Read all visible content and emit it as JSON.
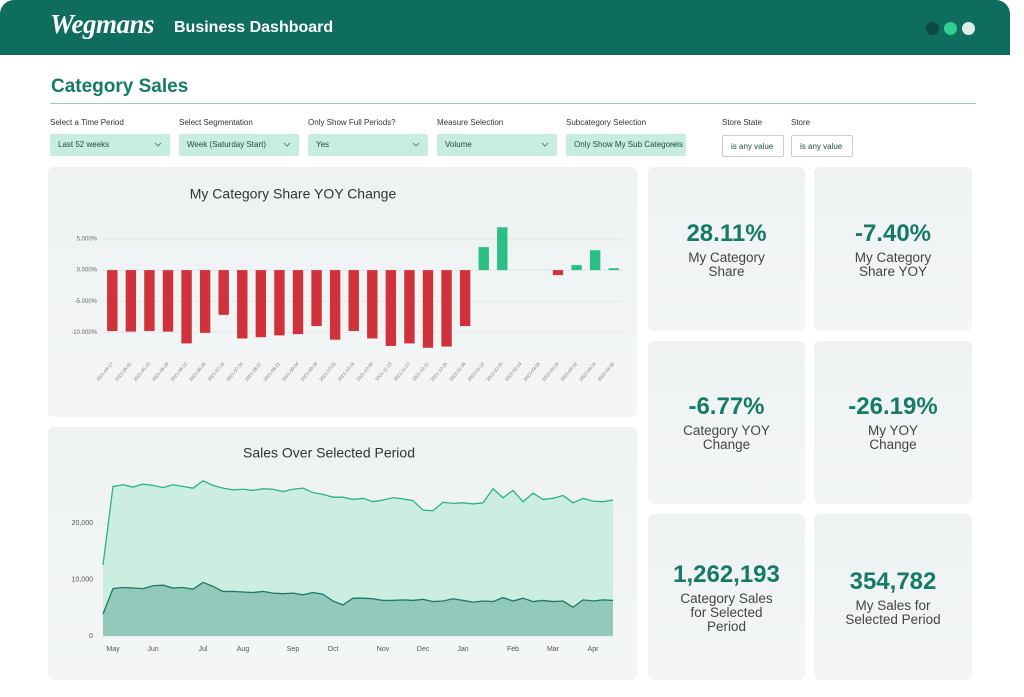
{
  "header": {
    "logo": "Wegmans",
    "title": "Business Dashboard"
  },
  "section_title": "Category Sales",
  "filters": [
    {
      "label": "Select a Time Period",
      "value": "Last 52 weeks"
    },
    {
      "label": "Select Segmentation",
      "value": "Week (Saturday Start)"
    },
    {
      "label": "Only Show Full Periods?",
      "value": "Yes"
    },
    {
      "label": "Measure Selection",
      "value": "Volume"
    },
    {
      "label": "Subcategory Selection",
      "value": "Only Show My Sub Categoreis"
    },
    {
      "label": "Store State",
      "value": "is any value"
    },
    {
      "label": "Store",
      "value": "is any value"
    }
  ],
  "chart_data": [
    {
      "type": "bar",
      "title": "My Category Share YOY Change",
      "categories": [
        "2021-04-17",
        "2021-05-01",
        "2021-05-15",
        "2021-05-29",
        "2021-06-12",
        "2021-06-26",
        "2021-07-10",
        "2021-07-24",
        "2021-08-07",
        "2021-08-21",
        "2021-09-04",
        "2021-09-18",
        "2021-10-02",
        "2021-10-16",
        "2021-10-30",
        "2021-11-13",
        "2021-11-27",
        "2021-12-11",
        "2021-12-25",
        "2022-01-08",
        "2022-01-22",
        "2022-02-05",
        "2022-02-19",
        "2022-03-05",
        "2022-03-19",
        "2022-04-02",
        "2022-04-16",
        "2022-04-30"
      ],
      "values": [
        -9.8,
        -9.9,
        -9.8,
        -9.9,
        -11.8,
        -10.1,
        -7.2,
        -11.0,
        -10.8,
        -10.5,
        -10.3,
        -9.0,
        -11.2,
        -9.8,
        -11.0,
        -12.2,
        -11.8,
        -12.5,
        -12.3,
        -9.0,
        3.7,
        6.9,
        0,
        0,
        -0.8,
        0.8,
        3.2,
        0.3
      ],
      "positive_color": "#2cbf85",
      "negative_color": "#d0323c",
      "ylim": [
        -13.5,
        7.5
      ],
      "yticks": [
        {
          "value": 5,
          "label": "5.000%"
        },
        {
          "value": 0,
          "label": "0.000%"
        },
        {
          "value": -5,
          "label": "-5.000%"
        },
        {
          "value": -10,
          "label": "-10.000%"
        }
      ],
      "grid": true
    },
    {
      "type": "area",
      "title": "Sales Over Selected Period",
      "categories": [
        null,
        "May",
        null,
        null,
        null,
        "Jun",
        null,
        null,
        null,
        null,
        "Jul",
        null,
        null,
        null,
        "Aug",
        null,
        null,
        null,
        null,
        "Sep",
        null,
        null,
        null,
        "Oct",
        null,
        null,
        null,
        null,
        "Nov",
        null,
        null,
        null,
        "Dec",
        null,
        null,
        null,
        "Jan",
        null,
        null,
        null,
        null,
        "Feb",
        null,
        null,
        null,
        "Mar",
        null,
        null,
        null,
        "Apr",
        null,
        null
      ],
      "series": [
        {
          "color": "#2db37e",
          "fill": "#cbeee0",
          "values": [
            12600,
            26500,
            26800,
            26400,
            26900,
            26700,
            26300,
            26800,
            26500,
            26200,
            27500,
            26700,
            26200,
            25900,
            26000,
            25800,
            26100,
            26000,
            25600,
            26000,
            26200,
            25400,
            25100,
            24600,
            24600,
            24200,
            24400,
            23800,
            24100,
            24500,
            24300,
            24000,
            22300,
            22200,
            23700,
            23500,
            23600,
            23400,
            23600,
            26100,
            24500,
            25800,
            23800,
            25300,
            24200,
            24400,
            24900,
            23600,
            24400,
            23900,
            23800,
            24100
          ]
        },
        {
          "color": "#1d7a68",
          "fill": "#93c9bb",
          "values": [
            3900,
            8400,
            8600,
            8500,
            8400,
            8900,
            9000,
            8500,
            8600,
            8300,
            9500,
            8800,
            7900,
            7900,
            7800,
            7700,
            7900,
            7600,
            7500,
            7600,
            7300,
            7700,
            7400,
            6200,
            5500,
            6700,
            6700,
            6600,
            6300,
            6300,
            6400,
            6300,
            6500,
            6100,
            6200,
            6600,
            6300,
            6000,
            6200,
            6100,
            6800,
            6200,
            6700,
            6100,
            6300,
            6100,
            6200,
            5100,
            6400,
            6200,
            6400,
            6300
          ]
        }
      ],
      "ylim": [
        0,
        28000
      ],
      "yticks": [
        0,
        {
          "value": 10000,
          "label": "10,000"
        },
        {
          "value": 20000,
          "label": "20,000"
        }
      ],
      "grid": true
    }
  ],
  "kpis": [
    {
      "value": "28.11%",
      "label": "My Category Share"
    },
    {
      "value": "-7.40%",
      "label": "My Category Share YOY"
    },
    {
      "value": "-6.77%",
      "label": "Category YOY Change"
    },
    {
      "value": "-26.19%",
      "label": "My YOY Change"
    },
    {
      "value": "1,262,193",
      "label": "Category Sales for Selected Period"
    },
    {
      "value": "354,782",
      "label": "My Sales for Selected Period"
    }
  ]
}
